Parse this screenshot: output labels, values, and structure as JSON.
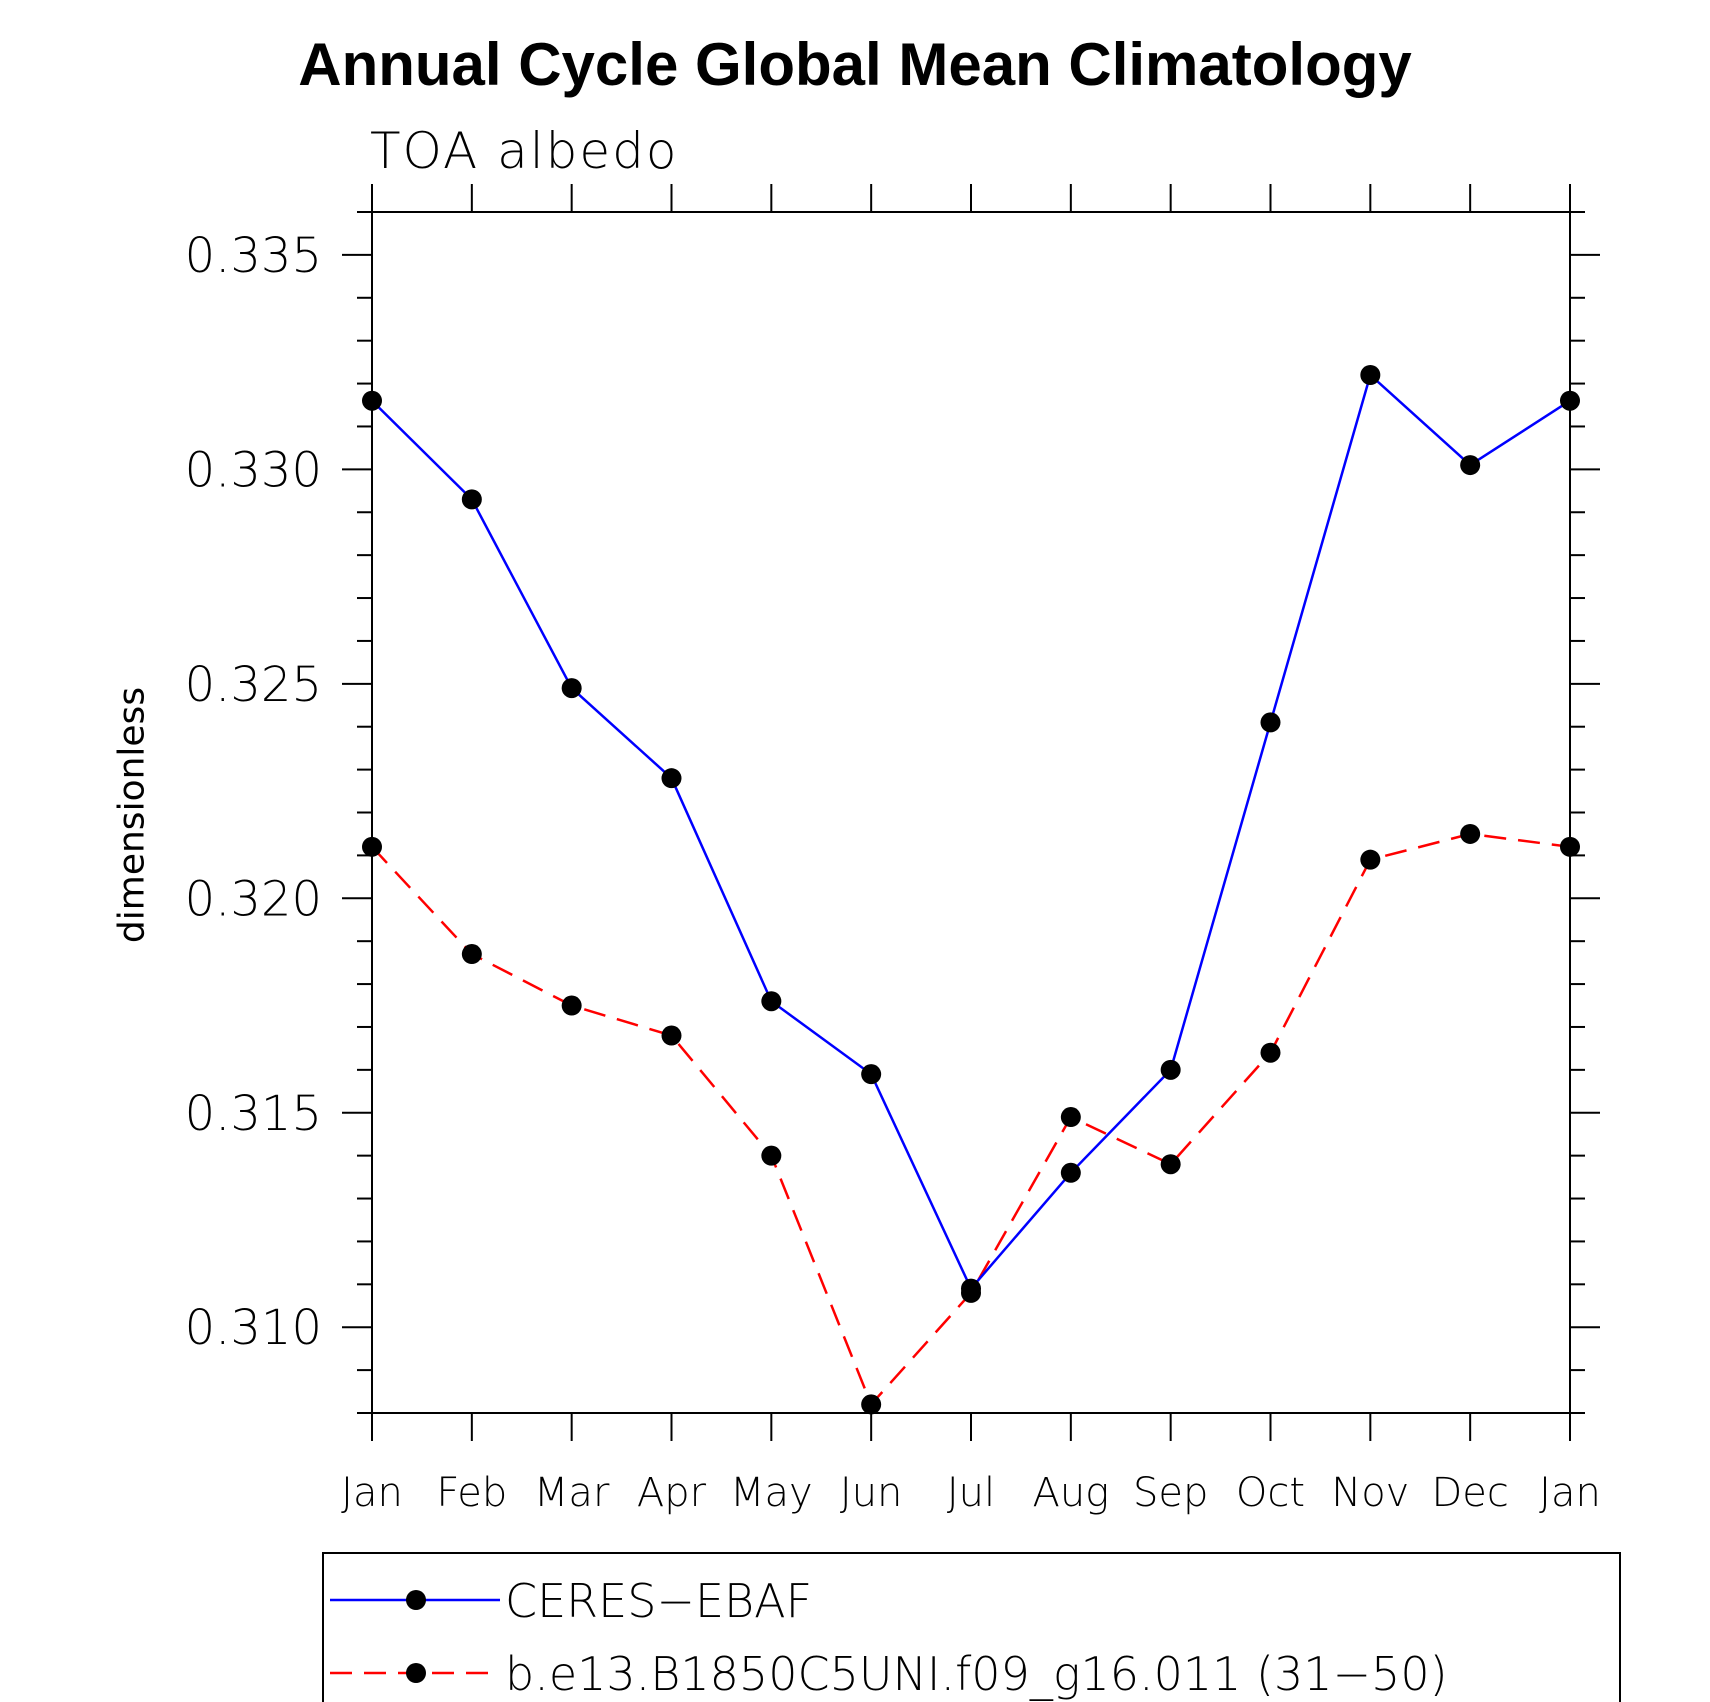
{
  "chart_data": {
    "type": "line",
    "title": "Annual Cycle Global Mean Climatology",
    "subtitle": "TOA  albedo",
    "xlabel": "",
    "ylabel": "dimensionless",
    "categories": [
      "Jan",
      "Feb",
      "Mar",
      "Apr",
      "May",
      "Jun",
      "Jul",
      "Aug",
      "Sep",
      "Oct",
      "Nov",
      "Dec",
      "Jan"
    ],
    "yticks": [
      "0.310",
      "0.315",
      "0.320",
      "0.325",
      "0.330",
      "0.335"
    ],
    "ylim": [
      0.308,
      0.336
    ],
    "grid": false,
    "legend_position": "bottom",
    "series": [
      {
        "name": "CERES−EBAF",
        "color": "#0000ff",
        "line_style": "solid",
        "marker": "filled-circle",
        "values": [
          0.3316,
          0.3293,
          0.3249,
          0.3228,
          0.3176,
          0.3159,
          0.3109,
          0.3136,
          0.316,
          0.3241,
          0.3322,
          0.3301,
          0.3316
        ]
      },
      {
        "name": "b.e13.B1850C5UNI.f09_g16.011 (31−50)",
        "color": "#ff0000",
        "line_style": "dashed",
        "marker": "filled-circle",
        "values": [
          0.3212,
          0.3187,
          0.3175,
          0.3168,
          0.314,
          0.3082,
          0.3108,
          0.3149,
          0.3138,
          0.3164,
          0.3209,
          0.3215,
          0.3212
        ]
      }
    ]
  }
}
